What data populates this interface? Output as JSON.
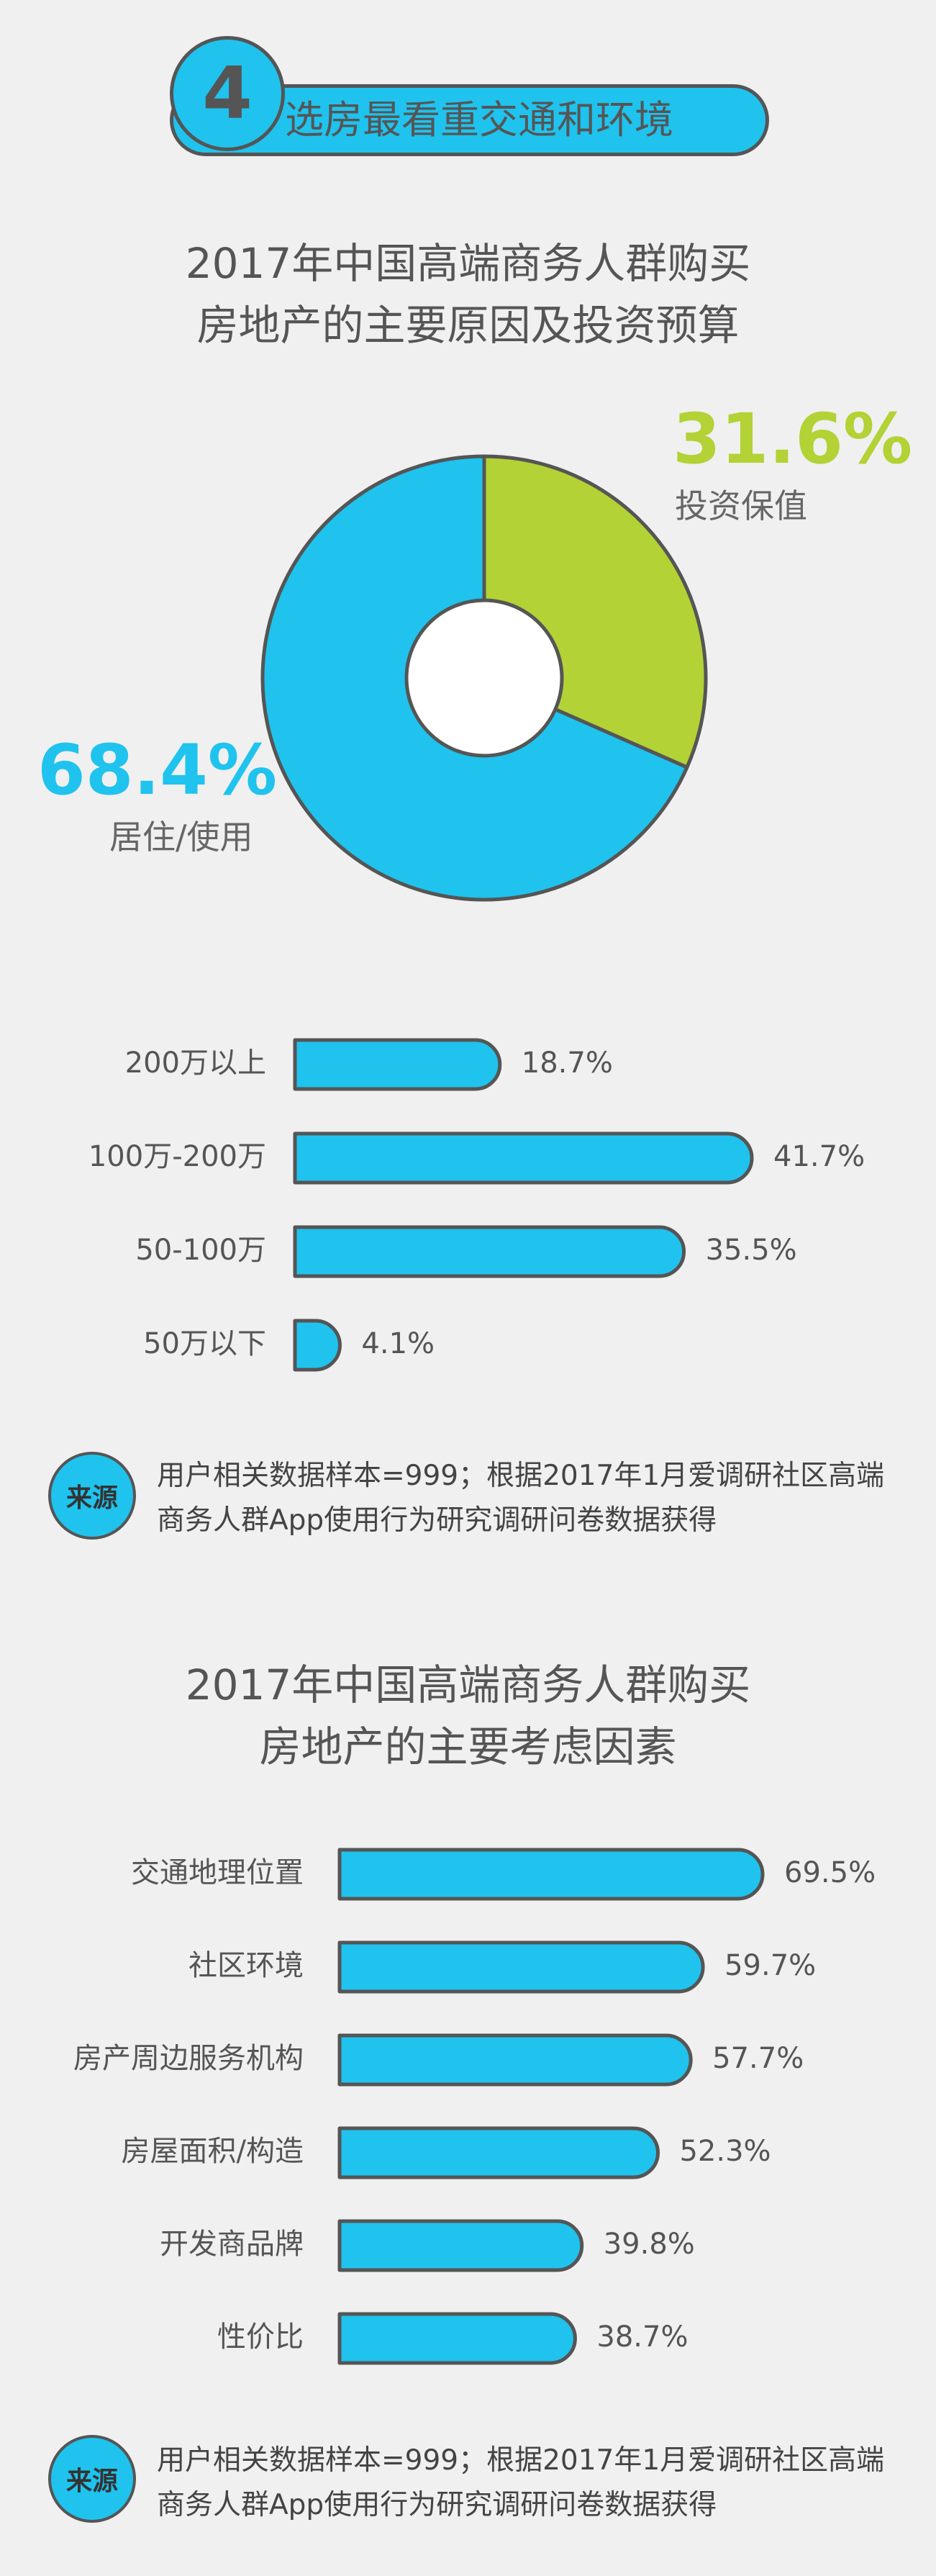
{
  "header": {
    "number": "4",
    "title": "选房最看重交通和环境"
  },
  "section1": {
    "title_line1": "2017年中国高端商务人群购买",
    "title_line2": "房地产的主要原因及投资预算"
  },
  "section2": {
    "title_line1": "2017年中国高端商务人群购买",
    "title_line2": "房地产的主要考虑因素"
  },
  "pie": {
    "slice_invest_pct": "31.6%",
    "slice_invest_label": "投资保值",
    "slice_live_pct": "68.4%",
    "slice_live_label": "居住/使用"
  },
  "source": {
    "badge": "来源",
    "line1": "用户相关数据样本=999；根据2017年1月爱调研社区高端",
    "line2": "商务人群App使用行为研究调研问卷数据获得"
  },
  "colors": {
    "primary": "#1fc3ee",
    "secondary": "#b2d235",
    "outline": "#555555",
    "background": "#f0f0f0"
  },
  "chart_data": [
    {
      "type": "pie",
      "title": "2017年中国高端商务人群购买房地产的主要原因及投资预算",
      "categories": [
        "投资保值",
        "居住/使用"
      ],
      "values": [
        31.6,
        68.4
      ],
      "colors": [
        "#b2d235",
        "#1fc3ee"
      ]
    },
    {
      "type": "bar",
      "orientation": "horizontal",
      "categories": [
        "200万以上",
        "100万-200万",
        "50-100万",
        "50万以下"
      ],
      "values": [
        18.7,
        41.7,
        35.5,
        4.1
      ],
      "labels": [
        "18.7%",
        "41.7%",
        "35.5%",
        "4.1%"
      ]
    },
    {
      "type": "bar",
      "orientation": "horizontal",
      "title": "2017年中国高端商务人群购买房地产的主要考虑因素",
      "categories": [
        "交通地理位置",
        "社区环境",
        "房产周边服务机构",
        "房屋面积/构造",
        "开发商品牌",
        "性价比"
      ],
      "values": [
        69.5,
        59.7,
        57.7,
        52.3,
        39.8,
        38.7
      ],
      "labels": [
        "69.5%",
        "59.7%",
        "57.7%",
        "52.3%",
        "39.8%",
        "38.7%"
      ]
    }
  ]
}
